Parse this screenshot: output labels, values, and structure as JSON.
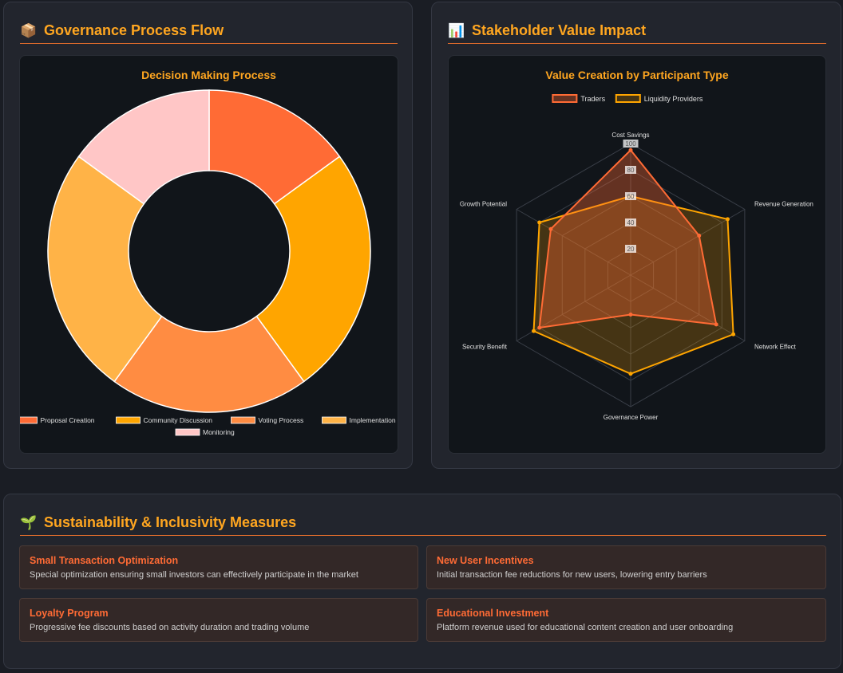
{
  "governance": {
    "icon": "package-icon",
    "title": "Governance Process Flow",
    "chart_title": "Decision Making Process"
  },
  "stakeholder": {
    "icon": "bar-chart-icon",
    "title": "Stakeholder Value Impact",
    "chart_title": "Value Creation by Participant Type"
  },
  "sustainability": {
    "icon": "seedling-icon",
    "title": "Sustainability & Inclusivity Measures",
    "cards": [
      {
        "title": "Small Transaction Optimization",
        "desc": "Special optimization ensuring small investors can effectively participate in the market"
      },
      {
        "title": "New User Incentives",
        "desc": "Initial transaction fee reductions for new users, lowering entry barriers"
      },
      {
        "title": "Loyalty Program",
        "desc": "Progressive fee discounts based on activity duration and trading volume"
      },
      {
        "title": "Educational Investment",
        "desc": "Platform revenue used for educational content creation and user onboarding"
      }
    ]
  },
  "chart_data": [
    {
      "type": "doughnut",
      "title": "Decision Making Process",
      "categories": [
        "Proposal Creation",
        "Community Discussion",
        "Voting Process",
        "Implementation",
        "Monitoring"
      ],
      "values": [
        15,
        25,
        20,
        25,
        15
      ],
      "colors": [
        "#ff6b35",
        "#ffa500",
        "#ff8c42",
        "#ffb347",
        "#ffc6c6"
      ],
      "legend_position": "bottom"
    },
    {
      "type": "radar",
      "title": "Value Creation by Participant Type",
      "categories": [
        "Cost Savings",
        "Revenue Generation",
        "Network Effect",
        "Governance Power",
        "Security Benefit",
        "Growth Potential"
      ],
      "r_range": [
        0,
        100
      ],
      "ticks": [
        "20",
        "40",
        "60",
        "80",
        "100"
      ],
      "series": [
        {
          "name": "Traders",
          "values": [
            95,
            60,
            75,
            30,
            80,
            70
          ],
          "color": "#ff6b35"
        },
        {
          "name": "Liquidity Providers",
          "values": [
            60,
            85,
            90,
            75,
            85,
            80
          ],
          "color": "#ffa500"
        }
      ],
      "legend_position": "top"
    }
  ]
}
